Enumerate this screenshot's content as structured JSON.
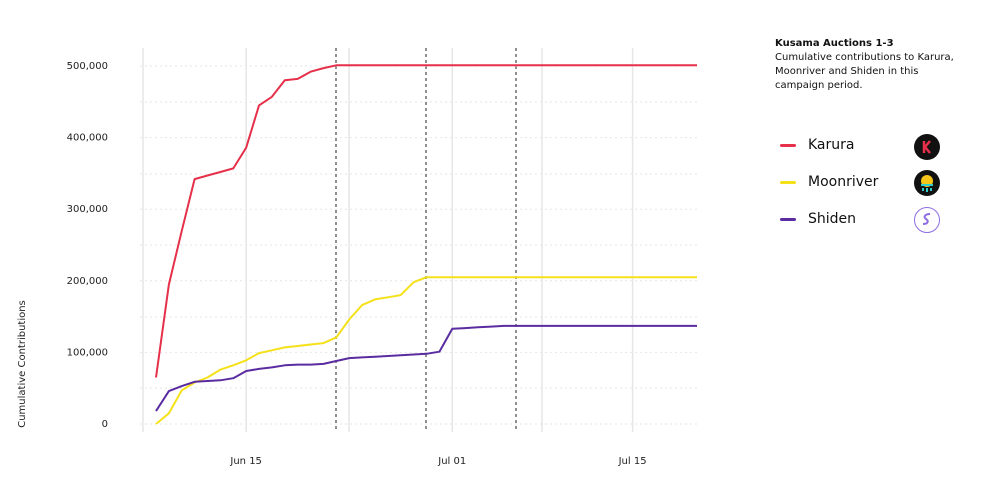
{
  "chart_data": {
    "type": "line",
    "title": "Kusama Auctions 1-3",
    "subtitle": "Cumulative contributions to Karura, Moonriver and Shiden in this campaign period.",
    "y_label": "Cumulative Contributions",
    "categories": [
      null,
      null,
      null,
      null,
      null,
      null,
      null,
      "Jun 15",
      null,
      null,
      null,
      null,
      null,
      null,
      null,
      null,
      null,
      null,
      null,
      null,
      null,
      null,
      null,
      "Jul 01",
      null,
      null,
      null,
      null,
      null,
      null,
      null,
      null,
      null,
      null,
      null,
      null,
      null,
      "Jul 15",
      null,
      null,
      null,
      null,
      null
    ],
    "series": [
      {
        "name": "Karura",
        "color": "#e6304a",
        "values": [
          65000,
          195000,
          270000,
          342000,
          347000,
          352000,
          357000,
          386000,
          445000,
          457000,
          480000,
          482000,
          492000,
          497000,
          501000,
          501000,
          501000,
          501000,
          501000,
          501000,
          501000,
          501000,
          501000,
          501000,
          501000,
          501000,
          501000,
          501000,
          501000,
          501000,
          501000,
          501000,
          501000,
          501000,
          501000,
          501000,
          501000,
          501000,
          501000,
          501000,
          501000,
          501000,
          501000
        ]
      },
      {
        "name": "Moonriver",
        "color": "#f5e11a",
        "values": [
          0,
          15000,
          47000,
          58000,
          65000,
          76000,
          82000,
          89000,
          99000,
          103000,
          107000,
          109000,
          111000,
          113000,
          121000,
          146000,
          166000,
          174000,
          177000,
          180000,
          198000,
          205000,
          205000,
          205000,
          205000,
          205000,
          205000,
          205000,
          205000,
          205000,
          205000,
          205000,
          205000,
          205000,
          205000,
          205000,
          205000,
          205000,
          205000,
          205000,
          205000,
          205000,
          205000
        ]
      },
      {
        "name": "Shiden",
        "color": "#5a2ca0",
        "values": [
          18000,
          46000,
          53000,
          59000,
          60000,
          61000,
          64000,
          74000,
          77000,
          79000,
          82000,
          83000,
          83000,
          84000,
          88000,
          92000,
          93000,
          94000,
          95000,
          96000,
          97000,
          98000,
          101000,
          133000,
          134000,
          135000,
          136000,
          137000,
          137000,
          137000,
          137000,
          137000,
          137000,
          137000,
          137000,
          137000,
          137000,
          137000,
          137000,
          137000,
          137000,
          137000,
          137000
        ]
      }
    ],
    "ylim": [
      0,
      500000
    ],
    "yticks": [
      0,
      {
        "value": 100000,
        "label": "100,000"
      },
      {
        "value": 200000,
        "label": "200,000"
      },
      {
        "value": 300000,
        "label": "300,000"
      },
      {
        "value": 400000,
        "label": "400,000"
      },
      {
        "value": 500000,
        "label": "500,000"
      }
    ],
    "grid": true
  }
}
